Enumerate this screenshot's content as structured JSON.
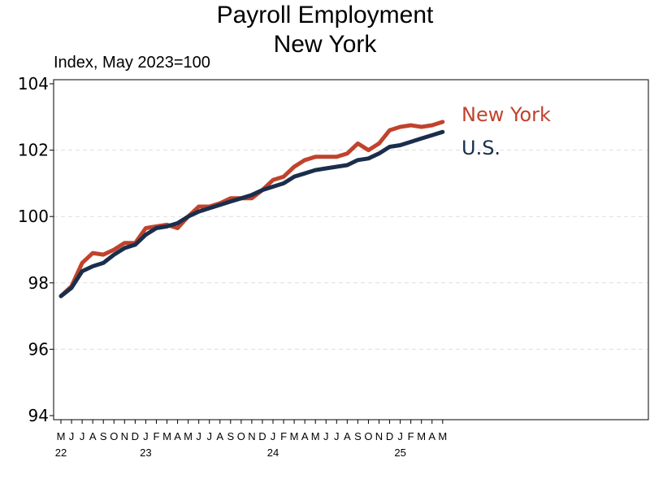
{
  "title_line1": "Payroll Employment",
  "title_line2": "New York",
  "subtitle": "Index, May 2023=100",
  "chart_data": {
    "type": "line",
    "ylim": [
      94,
      104
    ],
    "yticks": [
      94,
      96,
      98,
      100,
      102,
      104
    ],
    "grid": "horizontal dashed",
    "x_month_labels": [
      "M",
      "J",
      "J",
      "A",
      "S",
      "O",
      "N",
      "D",
      "J",
      "F",
      "M",
      "A",
      "M",
      "J",
      "J",
      "A",
      "S",
      "O",
      "N",
      "D",
      "J",
      "F",
      "M",
      "A",
      "M",
      "J",
      "J",
      "A",
      "S",
      "O",
      "N",
      "D",
      "J",
      "F",
      "M",
      "A",
      "M"
    ],
    "x_year_labels": [
      {
        "label": "22",
        "index": 0
      },
      {
        "label": "23",
        "index": 8
      },
      {
        "label": "24",
        "index": 20
      },
      {
        "label": "25",
        "index": 32
      }
    ],
    "series": [
      {
        "name": "New York",
        "color": "#c0432d",
        "values": [
          97.6,
          97.9,
          98.6,
          98.9,
          98.85,
          99.0,
          99.2,
          99.2,
          99.65,
          99.7,
          99.75,
          99.65,
          100.0,
          100.3,
          100.3,
          100.4,
          100.55,
          100.55,
          100.55,
          100.8,
          101.1,
          101.2,
          101.5,
          101.7,
          101.8,
          101.8,
          101.8,
          101.9,
          102.2,
          102.0,
          102.2,
          102.6,
          102.7,
          102.75,
          102.7,
          102.75,
          102.85
        ]
      },
      {
        "name": "U.S.",
        "color": "#1a2e4c",
        "values": [
          97.6,
          97.85,
          98.35,
          98.5,
          98.6,
          98.85,
          99.05,
          99.15,
          99.45,
          99.65,
          99.7,
          99.8,
          100.0,
          100.15,
          100.25,
          100.35,
          100.45,
          100.55,
          100.65,
          100.8,
          100.9,
          101.0,
          101.2,
          101.3,
          101.4,
          101.45,
          101.5,
          101.55,
          101.7,
          101.75,
          101.9,
          102.1,
          102.15,
          102.25,
          102.35,
          102.45,
          102.55
        ]
      }
    ]
  }
}
